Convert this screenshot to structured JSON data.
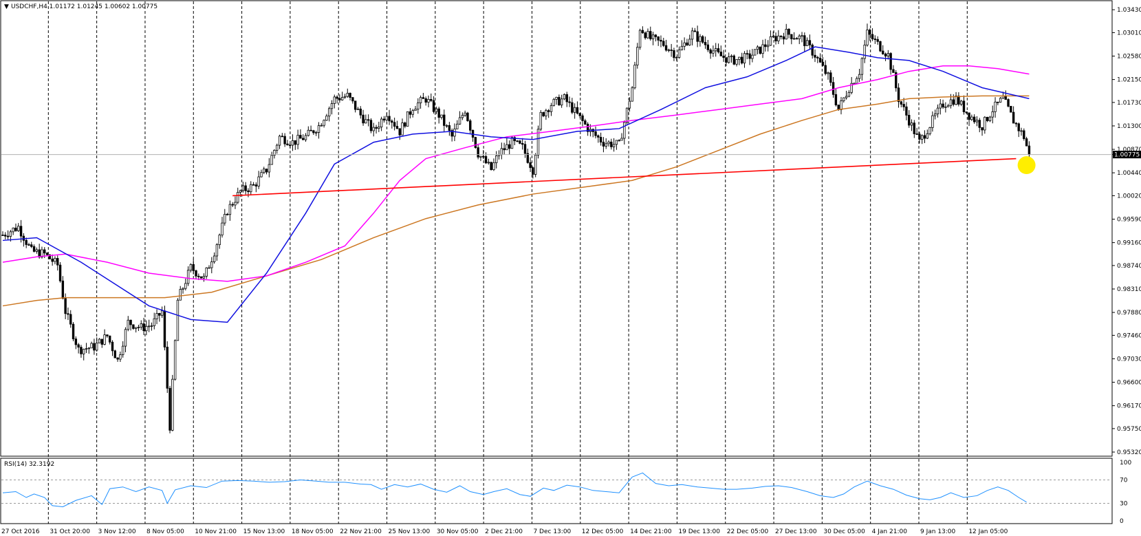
{
  "header": {
    "symbol_label": "USDCHF,H4  1.01172 1.01245 1.00602 1.00775"
  },
  "rsi_header": {
    "label": "RSI(14) 32.3192"
  },
  "current_price_label": "1.00775",
  "colors": {
    "background": "#ffffff",
    "candle": "#000000",
    "ma_fast": "#1010e0",
    "ma_mid": "#ff00ff",
    "ma_slow": "#cc7722",
    "trendline": "#ff0000",
    "highlight_marker": "#ffee00",
    "rsi_line": "#1e90ff",
    "grid_dash": "#000000"
  },
  "chart_data": [
    {
      "type": "candlestick",
      "title": "USDCHF,H4",
      "ohlc_last": {
        "open": 1.01172,
        "high": 1.01245,
        "low": 1.00602,
        "close": 1.00775
      },
      "ylim": [
        0.9532,
        1.0352
      ],
      "y_ticks": [
        1.0343,
        1.0301,
        1.0258,
        1.0215,
        1.0173,
        1.013,
        1.0087,
        1.00775,
        1.0044,
        1.0002,
        0.9959,
        0.9916,
        0.9874,
        0.9831,
        0.9788,
        0.9746,
        0.9703,
        0.966,
        0.9617,
        0.9575,
        0.9532
      ],
      "y_tick_labels": [
        "1.03430",
        "1.03010",
        "1.02580",
        "1.02150",
        "1.01730",
        "1.01300",
        "1.00870",
        "1.00775",
        "1.00440",
        "1.00020",
        "0.99590",
        "0.99160",
        "0.98740",
        "0.98310",
        "0.97880",
        "0.97460",
        "0.97030",
        "0.96600",
        "0.96170",
        "0.95750",
        "0.95320"
      ],
      "x_labels": [
        "27 Oct 2016",
        "31 Oct 20:00",
        "3 Nov 12:00",
        "8 Nov 05:00",
        "10 Nov 21:00",
        "15 Nov 13:00",
        "18 Nov 05:00",
        "22 Nov 21:00",
        "25 Nov 13:00",
        "30 Nov 05:00",
        "2 Dec 21:00",
        "7 Dec 13:00",
        "12 Dec 05:00",
        "14 Dec 21:00",
        "19 Dec 13:00",
        "22 Dec 05:00",
        "27 Dec 13:00",
        "30 Dec 05:00",
        "4 Jan 21:00",
        "9 Jan 13:00",
        "12 Jan 05:00"
      ],
      "price_path": [
        [
          0,
          0.993
        ],
        [
          6,
          0.9945
        ],
        [
          11,
          0.99
        ],
        [
          16,
          0.9895
        ],
        [
          21,
          0.9875
        ],
        [
          24,
          0.979
        ],
        [
          29,
          0.972
        ],
        [
          35,
          0.9725
        ],
        [
          40,
          0.9745
        ],
        [
          44,
          0.97
        ],
        [
          48,
          0.977
        ],
        [
          53,
          0.976
        ],
        [
          57,
          0.9765
        ],
        [
          61,
          0.979
        ],
        [
          64,
          0.958
        ],
        [
          67,
          0.981
        ],
        [
          72,
          0.987
        ],
        [
          77,
          0.985
        ],
        [
          81,
          0.99
        ],
        [
          86,
          0.9975
        ],
        [
          91,
          1.001
        ],
        [
          96,
          1.002
        ],
        [
          101,
          1.005
        ],
        [
          106,
          1.011
        ],
        [
          111,
          1.01
        ],
        [
          116,
          1.011
        ],
        [
          121,
          1.013
        ],
        [
          127,
          1.018
        ],
        [
          132,
          1.0185
        ],
        [
          137,
          1.015
        ],
        [
          142,
          1.012
        ],
        [
          147,
          1.0155
        ],
        [
          152,
          1.012
        ],
        [
          157,
          1.0165
        ],
        [
          162,
          1.018
        ],
        [
          167,
          1.015
        ],
        [
          172,
          1.011
        ],
        [
          177,
          1.016
        ],
        [
          182,
          1.008
        ],
        [
          187,
          1.005
        ],
        [
          190,
          1.008
        ],
        [
          195,
          1.01
        ],
        [
          199,
          1.009
        ],
        [
          203,
          1.005
        ],
        [
          206,
          1.015
        ],
        [
          210,
          1.017
        ],
        [
          215,
          1.018
        ],
        [
          220,
          1.015
        ],
        [
          225,
          1.012
        ],
        [
          230,
          1.01
        ],
        [
          236,
          1.0095
        ],
        [
          241,
          1.02
        ],
        [
          244,
          1.031
        ],
        [
          248,
          1.029
        ],
        [
          253,
          1.028
        ],
        [
          258,
          1.026
        ],
        [
          264,
          1.03
        ],
        [
          269,
          1.028
        ],
        [
          274,
          1.026
        ],
        [
          279,
          1.025
        ],
        [
          285,
          1.0255
        ],
        [
          290,
          1.027
        ],
        [
          295,
          1.029
        ],
        [
          300,
          1.03
        ],
        [
          306,
          1.029
        ],
        [
          311,
          1.026
        ],
        [
          316,
          1.022
        ],
        [
          320,
          1.016
        ],
        [
          324,
          1.02
        ],
        [
          328,
          1.023
        ],
        [
          331,
          1.03
        ],
        [
          335,
          1.028
        ],
        [
          339,
          1.026
        ],
        [
          343,
          1.018
        ],
        [
          347,
          1.014
        ],
        [
          351,
          1.01
        ],
        [
          356,
          1.014
        ],
        [
          360,
          1.017
        ],
        [
          365,
          1.018
        ],
        [
          370,
          1.015
        ],
        [
          375,
          1.013
        ],
        [
          379,
          1.016
        ],
        [
          383,
          1.018
        ],
        [
          387,
          1.014
        ],
        [
          391,
          1.011
        ],
        [
          393,
          1.0077
        ]
      ],
      "ma_fast_path": [
        [
          0,
          0.992
        ],
        [
          13,
          0.9925
        ],
        [
          30,
          0.988
        ],
        [
          56,
          0.98
        ],
        [
          72,
          0.9775
        ],
        [
          86,
          0.977
        ],
        [
          101,
          0.986
        ],
        [
          116,
          0.997
        ],
        [
          127,
          1.006
        ],
        [
          142,
          1.01
        ],
        [
          157,
          1.0115
        ],
        [
          172,
          1.012
        ],
        [
          187,
          1.011
        ],
        [
          203,
          1.0105
        ],
        [
          220,
          1.012
        ],
        [
          236,
          1.0125
        ],
        [
          252,
          1.016
        ],
        [
          269,
          1.02
        ],
        [
          285,
          1.022
        ],
        [
          300,
          1.025
        ],
        [
          311,
          1.0275
        ],
        [
          324,
          1.0265
        ],
        [
          335,
          1.0255
        ],
        [
          347,
          1.025
        ],
        [
          360,
          1.023
        ],
        [
          375,
          1.02
        ],
        [
          393,
          1.018
        ]
      ],
      "ma_mid_path": [
        [
          0,
          0.988
        ],
        [
          13,
          0.989
        ],
        [
          24,
          0.9895
        ],
        [
          40,
          0.988
        ],
        [
          56,
          0.986
        ],
        [
          72,
          0.985
        ],
        [
          86,
          0.9845
        ],
        [
          101,
          0.9855
        ],
        [
          116,
          0.988
        ],
        [
          131,
          0.991
        ],
        [
          142,
          0.997
        ],
        [
          152,
          1.003
        ],
        [
          162,
          1.007
        ],
        [
          177,
          1.009
        ],
        [
          193,
          1.011
        ],
        [
          210,
          1.012
        ],
        [
          226,
          1.013
        ],
        [
          241,
          1.014
        ],
        [
          258,
          1.015
        ],
        [
          274,
          1.016
        ],
        [
          290,
          1.017
        ],
        [
          306,
          1.018
        ],
        [
          320,
          1.02
        ],
        [
          335,
          1.0215
        ],
        [
          347,
          1.023
        ],
        [
          360,
          1.024
        ],
        [
          370,
          1.024
        ],
        [
          381,
          1.0235
        ],
        [
          393,
          1.0225
        ]
      ],
      "ma_slow_path": [
        [
          0,
          0.98
        ],
        [
          13,
          0.981
        ],
        [
          24,
          0.9815
        ],
        [
          45,
          0.9815
        ],
        [
          62,
          0.9815
        ],
        [
          80,
          0.9825
        ],
        [
          101,
          0.9855
        ],
        [
          122,
          0.9885
        ],
        [
          142,
          0.9925
        ],
        [
          162,
          0.996
        ],
        [
          182,
          0.9985
        ],
        [
          203,
          1.0005
        ],
        [
          226,
          1.002
        ],
        [
          241,
          1.003
        ],
        [
          258,
          1.0055
        ],
        [
          274,
          1.0085
        ],
        [
          290,
          1.0115
        ],
        [
          306,
          1.014
        ],
        [
          320,
          1.016
        ],
        [
          335,
          1.017
        ],
        [
          347,
          1.018
        ],
        [
          360,
          1.0183
        ],
        [
          375,
          1.0185
        ],
        [
          393,
          1.0185
        ]
      ],
      "trendline": {
        "from": [
          88,
          1.0002
        ],
        "to": [
          388,
          1.007
        ]
      },
      "highlight_point": [
        392,
        1.0058
      ],
      "bar_count": 395
    },
    {
      "type": "line",
      "title": "RSI(14) 32.3192",
      "ylim": [
        0,
        100
      ],
      "y_ticks": [
        100,
        70,
        30,
        0
      ],
      "levels": [
        70,
        30
      ],
      "rsi_path": [
        [
          0,
          48
        ],
        [
          5,
          50
        ],
        [
          9,
          40
        ],
        [
          12,
          46
        ],
        [
          16,
          40
        ],
        [
          19,
          26
        ],
        [
          23,
          24
        ],
        [
          28,
          35
        ],
        [
          34,
          43
        ],
        [
          38,
          28
        ],
        [
          41,
          55
        ],
        [
          46,
          58
        ],
        [
          51,
          50
        ],
        [
          56,
          58
        ],
        [
          61,
          52
        ],
        [
          63,
          30
        ],
        [
          66,
          53
        ],
        [
          72,
          60
        ],
        [
          78,
          57
        ],
        [
          84,
          68
        ],
        [
          90,
          69
        ],
        [
          96,
          68
        ],
        [
          102,
          66
        ],
        [
          108,
          67
        ],
        [
          114,
          70
        ],
        [
          120,
          68
        ],
        [
          125,
          66
        ],
        [
          131,
          66
        ],
        [
          137,
          63
        ],
        [
          141,
          62
        ],
        [
          145,
          54
        ],
        [
          150,
          62
        ],
        [
          155,
          58
        ],
        [
          160,
          63
        ],
        [
          165,
          54
        ],
        [
          170,
          49
        ],
        [
          175,
          60
        ],
        [
          179,
          50
        ],
        [
          184,
          45
        ],
        [
          188,
          50
        ],
        [
          193,
          55
        ],
        [
          198,
          45
        ],
        [
          202,
          42
        ],
        [
          207,
          56
        ],
        [
          211,
          52
        ],
        [
          216,
          61
        ],
        [
          221,
          58
        ],
        [
          226,
          52
        ],
        [
          231,
          50
        ],
        [
          236,
          48
        ],
        [
          241,
          75
        ],
        [
          245,
          82
        ],
        [
          250,
          64
        ],
        [
          255,
          60
        ],
        [
          260,
          62
        ],
        [
          266,
          58
        ],
        [
          271,
          56
        ],
        [
          276,
          54
        ],
        [
          281,
          54
        ],
        [
          287,
          56
        ],
        [
          292,
          59
        ],
        [
          297,
          60
        ],
        [
          302,
          57
        ],
        [
          308,
          50
        ],
        [
          313,
          43
        ],
        [
          318,
          40
        ],
        [
          322,
          46
        ],
        [
          326,
          58
        ],
        [
          331,
          68
        ],
        [
          336,
          60
        ],
        [
          341,
          54
        ],
        [
          346,
          44
        ],
        [
          351,
          38
        ],
        [
          355,
          36
        ],
        [
          359,
          40
        ],
        [
          363,
          48
        ],
        [
          368,
          40
        ],
        [
          373,
          43
        ],
        [
          377,
          52
        ],
        [
          381,
          58
        ],
        [
          385,
          52
        ],
        [
          389,
          40
        ],
        [
          392,
          32
        ]
      ]
    }
  ]
}
